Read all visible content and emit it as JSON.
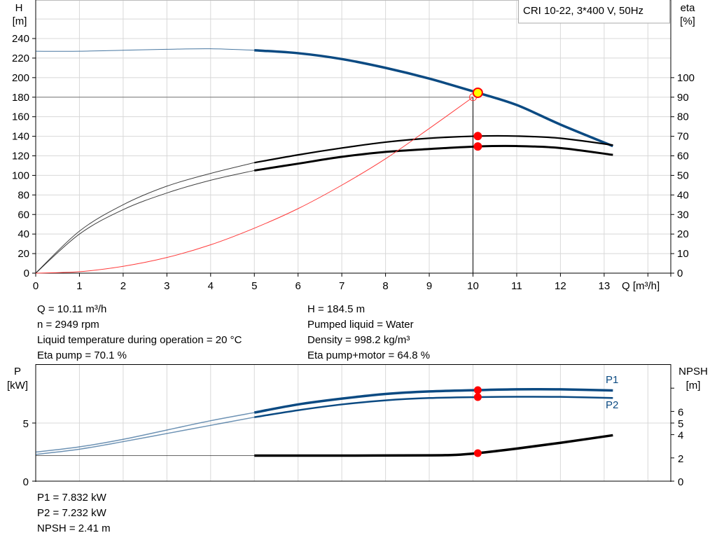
{
  "chart_data": [
    {
      "type": "line",
      "legend_box": "CRI 10-22, 3*400 V, 50Hz",
      "legend_placement": "top-right",
      "xlabel": "Q [m³/h]",
      "ylabel_left": {
        "name": "H",
        "unit": "[m]"
      },
      "ylabel_right": {
        "name": "eta",
        "unit": "[%]"
      },
      "xlim": [
        0,
        14.5
      ],
      "ylim_left": [
        0,
        280
      ],
      "ylim_right_eta_at_left_0_and_200": [
        0,
        100
      ],
      "x_ticks": [
        "0",
        "1",
        "2",
        "3",
        "4",
        "5",
        "6",
        "7",
        "8",
        "9",
        "10",
        "11",
        "12",
        "13"
      ],
      "y_left_ticks": [
        "0",
        "20",
        "40",
        "60",
        "80",
        "100",
        "120",
        "140",
        "160",
        "180",
        "200",
        "220",
        "240"
      ],
      "y_right_ticks": [
        "0",
        "10",
        "20",
        "30",
        "40",
        "50",
        "60",
        "70",
        "80",
        "90",
        "100"
      ],
      "grid": true,
      "operating_range_start_Q": 5,
      "duty_point": {
        "Q": 10,
        "H": 180
      },
      "operating_point": {
        "Q": 10.11,
        "H": 184.5,
        "eta_pump": 70.1,
        "eta_pump_motor": 64.8
      },
      "colors": {
        "head": "#0b4a82",
        "efficiency": "#000000",
        "system": "#ff3b3b",
        "marker": "#ff0000",
        "op_marker_fill": "#ffff00"
      },
      "series": [
        {
          "key": "H",
          "axis": "left",
          "x": [
            0,
            1,
            2,
            3,
            4,
            5,
            6,
            7,
            8,
            9,
            10,
            10.11,
            11,
            12,
            13.2
          ],
          "y": [
            227,
            227,
            228,
            229,
            229.5,
            228,
            225,
            219,
            210,
            199,
            186,
            184.5,
            172,
            152,
            130
          ]
        },
        {
          "key": "eta_pump",
          "axis": "right",
          "x": [
            0,
            1,
            2,
            3,
            4,
            5,
            6,
            7,
            8,
            9,
            10.11,
            11,
            12,
            13.2
          ],
          "y": [
            0,
            21.5,
            35,
            44.5,
            51,
            56.5,
            60.5,
            64,
            67,
            69,
            70.1,
            70.1,
            69,
            65.5
          ]
        },
        {
          "key": "eta_pump_motor",
          "axis": "right",
          "x": [
            0,
            1,
            2,
            3,
            4,
            5,
            6,
            7,
            8,
            9,
            10.11,
            11,
            12,
            13.2
          ],
          "y": [
            0,
            20,
            32.5,
            41,
            47.5,
            52.5,
            56,
            59.5,
            62,
            63.5,
            64.8,
            65,
            64,
            60.5
          ]
        },
        {
          "key": "system",
          "axis": "left",
          "x": [
            0,
            1,
            2,
            3,
            4,
            5,
            6,
            7,
            8,
            9,
            10
          ],
          "y": [
            0,
            1.5,
            7,
            16,
            29,
            46,
            66,
            90,
            117,
            148,
            180
          ]
        }
      ]
    },
    {
      "type": "line",
      "ylabel_left": {
        "name": "P",
        "unit": "[kW]"
      },
      "ylabel_right": {
        "name": "NPSH",
        "unit": "[m]"
      },
      "xlim": [
        0,
        14.5
      ],
      "ylim_left": [
        0,
        10
      ],
      "ylim_right": [
        0,
        10
      ],
      "y_left_ticks": [
        "0",
        "5"
      ],
      "y_right_ticks": [
        "0",
        "2",
        "4",
        "5",
        "6"
      ],
      "y_right_unlabeled_ticks": [
        8
      ],
      "grid": true,
      "operating_range_start_Q": 5,
      "operating_point": {
        "Q": 10.11,
        "P1": 7.832,
        "P2": 7.232,
        "NPSH": 2.41
      },
      "series": [
        {
          "key": "P1",
          "name": "P1",
          "x": [
            0,
            1,
            2,
            3,
            4,
            5,
            6,
            7,
            8,
            9,
            10.11,
            11,
            12,
            13.2
          ],
          "y": [
            2.5,
            2.95,
            3.6,
            4.4,
            5.2,
            5.9,
            6.6,
            7.1,
            7.5,
            7.72,
            7.832,
            7.9,
            7.9,
            7.8
          ]
        },
        {
          "key": "P2",
          "name": "P2",
          "x": [
            0,
            1,
            2,
            3,
            4,
            5,
            6,
            7,
            8,
            9,
            10.11,
            11,
            12,
            13.2
          ],
          "y": [
            2.3,
            2.75,
            3.4,
            4.1,
            4.8,
            5.5,
            6.1,
            6.6,
            6.95,
            7.15,
            7.232,
            7.26,
            7.25,
            7.15
          ]
        },
        {
          "key": "NPSH",
          "x": [
            0,
            2,
            5,
            7,
            9,
            9.6,
            10.11,
            11,
            12,
            13.2
          ],
          "y": [
            2.2,
            2.2,
            2.2,
            2.2,
            2.22,
            2.26,
            2.41,
            2.8,
            3.3,
            3.95
          ]
        }
      ]
    }
  ],
  "readouts": {
    "left": [
      "Q = 10.11 m³/h",
      "n = 2949 rpm",
      "Liquid temperature during operation = 20 °C",
      "Eta pump = 70.1 %"
    ],
    "right": [
      "H = 184.5 m",
      "Pumped liquid = Water",
      "Density = 998.2 kg/m³",
      "Eta pump+motor = 64.8 %"
    ],
    "power": [
      "P1 = 7.832 kW",
      "P2 = 7.232 kW",
      "NPSH = 2.41 m"
    ]
  }
}
